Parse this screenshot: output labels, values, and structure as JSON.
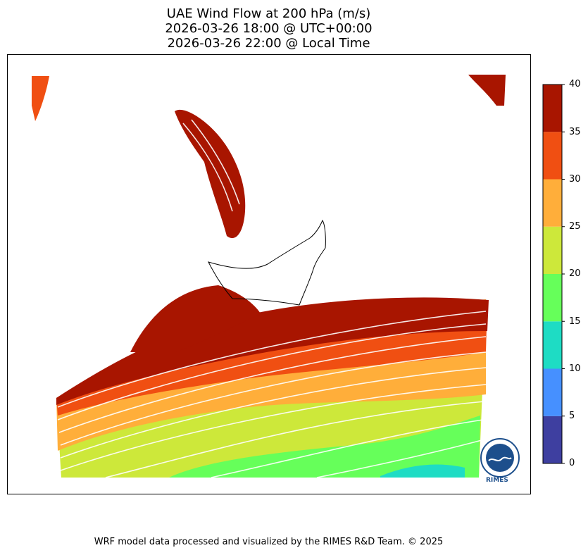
{
  "title": {
    "line1": "UAE Wind Flow at 200 hPa (m/s)",
    "line2": "2026-03-26 18:00 @ UTC+00:00",
    "line3": "2026-03-26 22:00 @ Local Time"
  },
  "colorbar": {
    "ticks": [
      "0",
      "5",
      "10",
      "15",
      "20",
      "25",
      "30",
      "35",
      "40"
    ],
    "colors": [
      "#3e3fa0",
      "#4690ff",
      "#1edcc4",
      "#66ff5a",
      "#cde83a",
      "#ffae3a",
      "#f04f12",
      "#a81500"
    ]
  },
  "logo": {
    "text": "RIMES"
  },
  "footer": "WRF model data processed and visualized by the RIMES R&D Team. © 2025"
}
